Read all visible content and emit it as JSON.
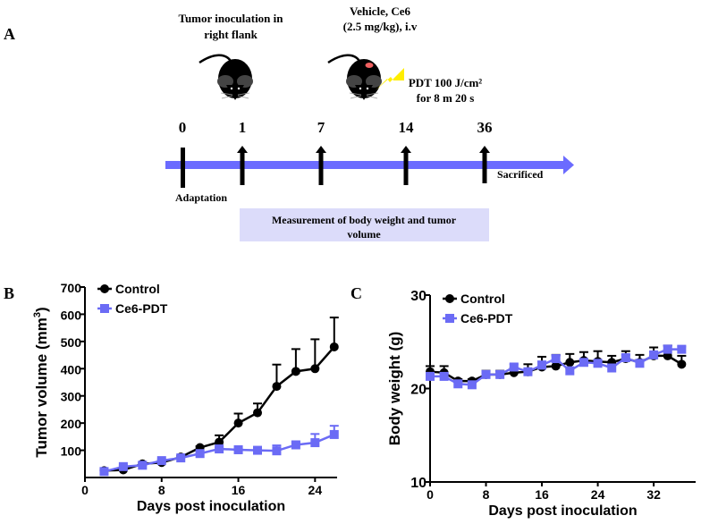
{
  "panel_a": {
    "label": "A",
    "inoculation_text": [
      "Tumor inoculation in",
      "right flank"
    ],
    "treatment_text": [
      "Vehicle, Ce6",
      "(2.5 mg/kg), i.v"
    ],
    "pdt_text": [
      "PDT 100 J/cm²",
      "for 8 m 20 s"
    ],
    "timeline_days": [
      "0",
      "1",
      "7",
      "14",
      "36"
    ],
    "adaptation_label": "Adaptation",
    "sacrificed_label": "Sacrificed",
    "measurement_box": [
      "Measurement of body weight and tumor",
      "volume"
    ],
    "colors": {
      "timeline": "#6b6bff",
      "box": "#dcdcfa",
      "lightning": "#ffee00",
      "tumor": "#f06060"
    }
  },
  "chart_data": [
    {
      "panel_label": "B",
      "type": "line",
      "xlabel": "Days post inoculation",
      "ylabel": "Tumor volume (mm",
      "ylabel_sup": "3",
      "ylabel_close": ")",
      "xlim": [
        0,
        26.3
      ],
      "ylim": [
        0,
        700
      ],
      "xticks": [
        0,
        8,
        16,
        24
      ],
      "yticks": [
        100,
        200,
        300,
        400,
        500,
        600,
        700
      ],
      "legend": "top-left",
      "x": [
        2,
        4,
        6,
        8,
        10,
        12,
        14,
        16,
        18,
        20,
        22,
        24,
        26
      ],
      "series": [
        {
          "name": "Control",
          "marker": "circle",
          "color": "#000000",
          "values": [
            25,
            28,
            50,
            55,
            75,
            110,
            130,
            200,
            238,
            335,
            390,
            400,
            480
          ],
          "error_upper": [
            28,
            32,
            55,
            60,
            80,
            115,
            155,
            235,
            272,
            415,
            472,
            508,
            588
          ]
        },
        {
          "name": "Ce6-PDT",
          "marker": "square",
          "color": "#6b6bf5",
          "values": [
            22,
            40,
            45,
            62,
            72,
            88,
            105,
            102,
            100,
            98,
            120,
            128,
            158
          ],
          "error_upper": [
            25,
            44,
            49,
            66,
            76,
            93,
            110,
            106,
            104,
            118,
            130,
            160,
            190
          ]
        }
      ]
    },
    {
      "panel_label": "C",
      "type": "line",
      "xlabel": "Days post inoculation",
      "ylabel": "Body weight (g)",
      "xlim": [
        0,
        38
      ],
      "ylim": [
        10,
        30
      ],
      "xticks": [
        0,
        8,
        16,
        24,
        32
      ],
      "yticks": [
        10,
        20,
        30
      ],
      "legend": "top-left",
      "x": [
        0,
        2,
        4,
        6,
        8,
        10,
        12,
        14,
        16,
        18,
        20,
        22,
        24,
        26,
        28,
        30,
        32,
        34,
        36
      ],
      "series": [
        {
          "name": "Control",
          "marker": "circle",
          "color": "#000000",
          "values": [
            21.8,
            21.7,
            20.8,
            20.8,
            21.5,
            21.5,
            21.7,
            21.8,
            22.3,
            22.4,
            22.8,
            23.0,
            22.9,
            22.8,
            23.2,
            22.8,
            23.5,
            23.5,
            22.6
          ],
          "error_upper": [
            22.4,
            22.4,
            21.0,
            21.0,
            21.9,
            21.9,
            22.2,
            22.6,
            23.4,
            23.6,
            23.7,
            23.9,
            24.0,
            23.5,
            24.0,
            23.6,
            24.4,
            24.6,
            23.5
          ]
        },
        {
          "name": "Ce6-PDT",
          "marker": "square",
          "color": "#6b6bf5",
          "values": [
            21.3,
            21.3,
            20.5,
            20.4,
            21.5,
            21.5,
            22.3,
            21.8,
            22.5,
            23.2,
            21.9,
            22.8,
            22.7,
            22.2,
            23.3,
            22.7,
            23.6,
            24.2,
            24.2
          ],
          "error_upper": [
            21.6,
            21.6,
            20.7,
            20.6,
            21.8,
            21.8,
            22.6,
            22.1,
            22.9,
            23.5,
            22.2,
            23.1,
            23.0,
            22.5,
            23.6,
            23.0,
            23.9,
            24.6,
            24.5
          ]
        }
      ]
    }
  ]
}
